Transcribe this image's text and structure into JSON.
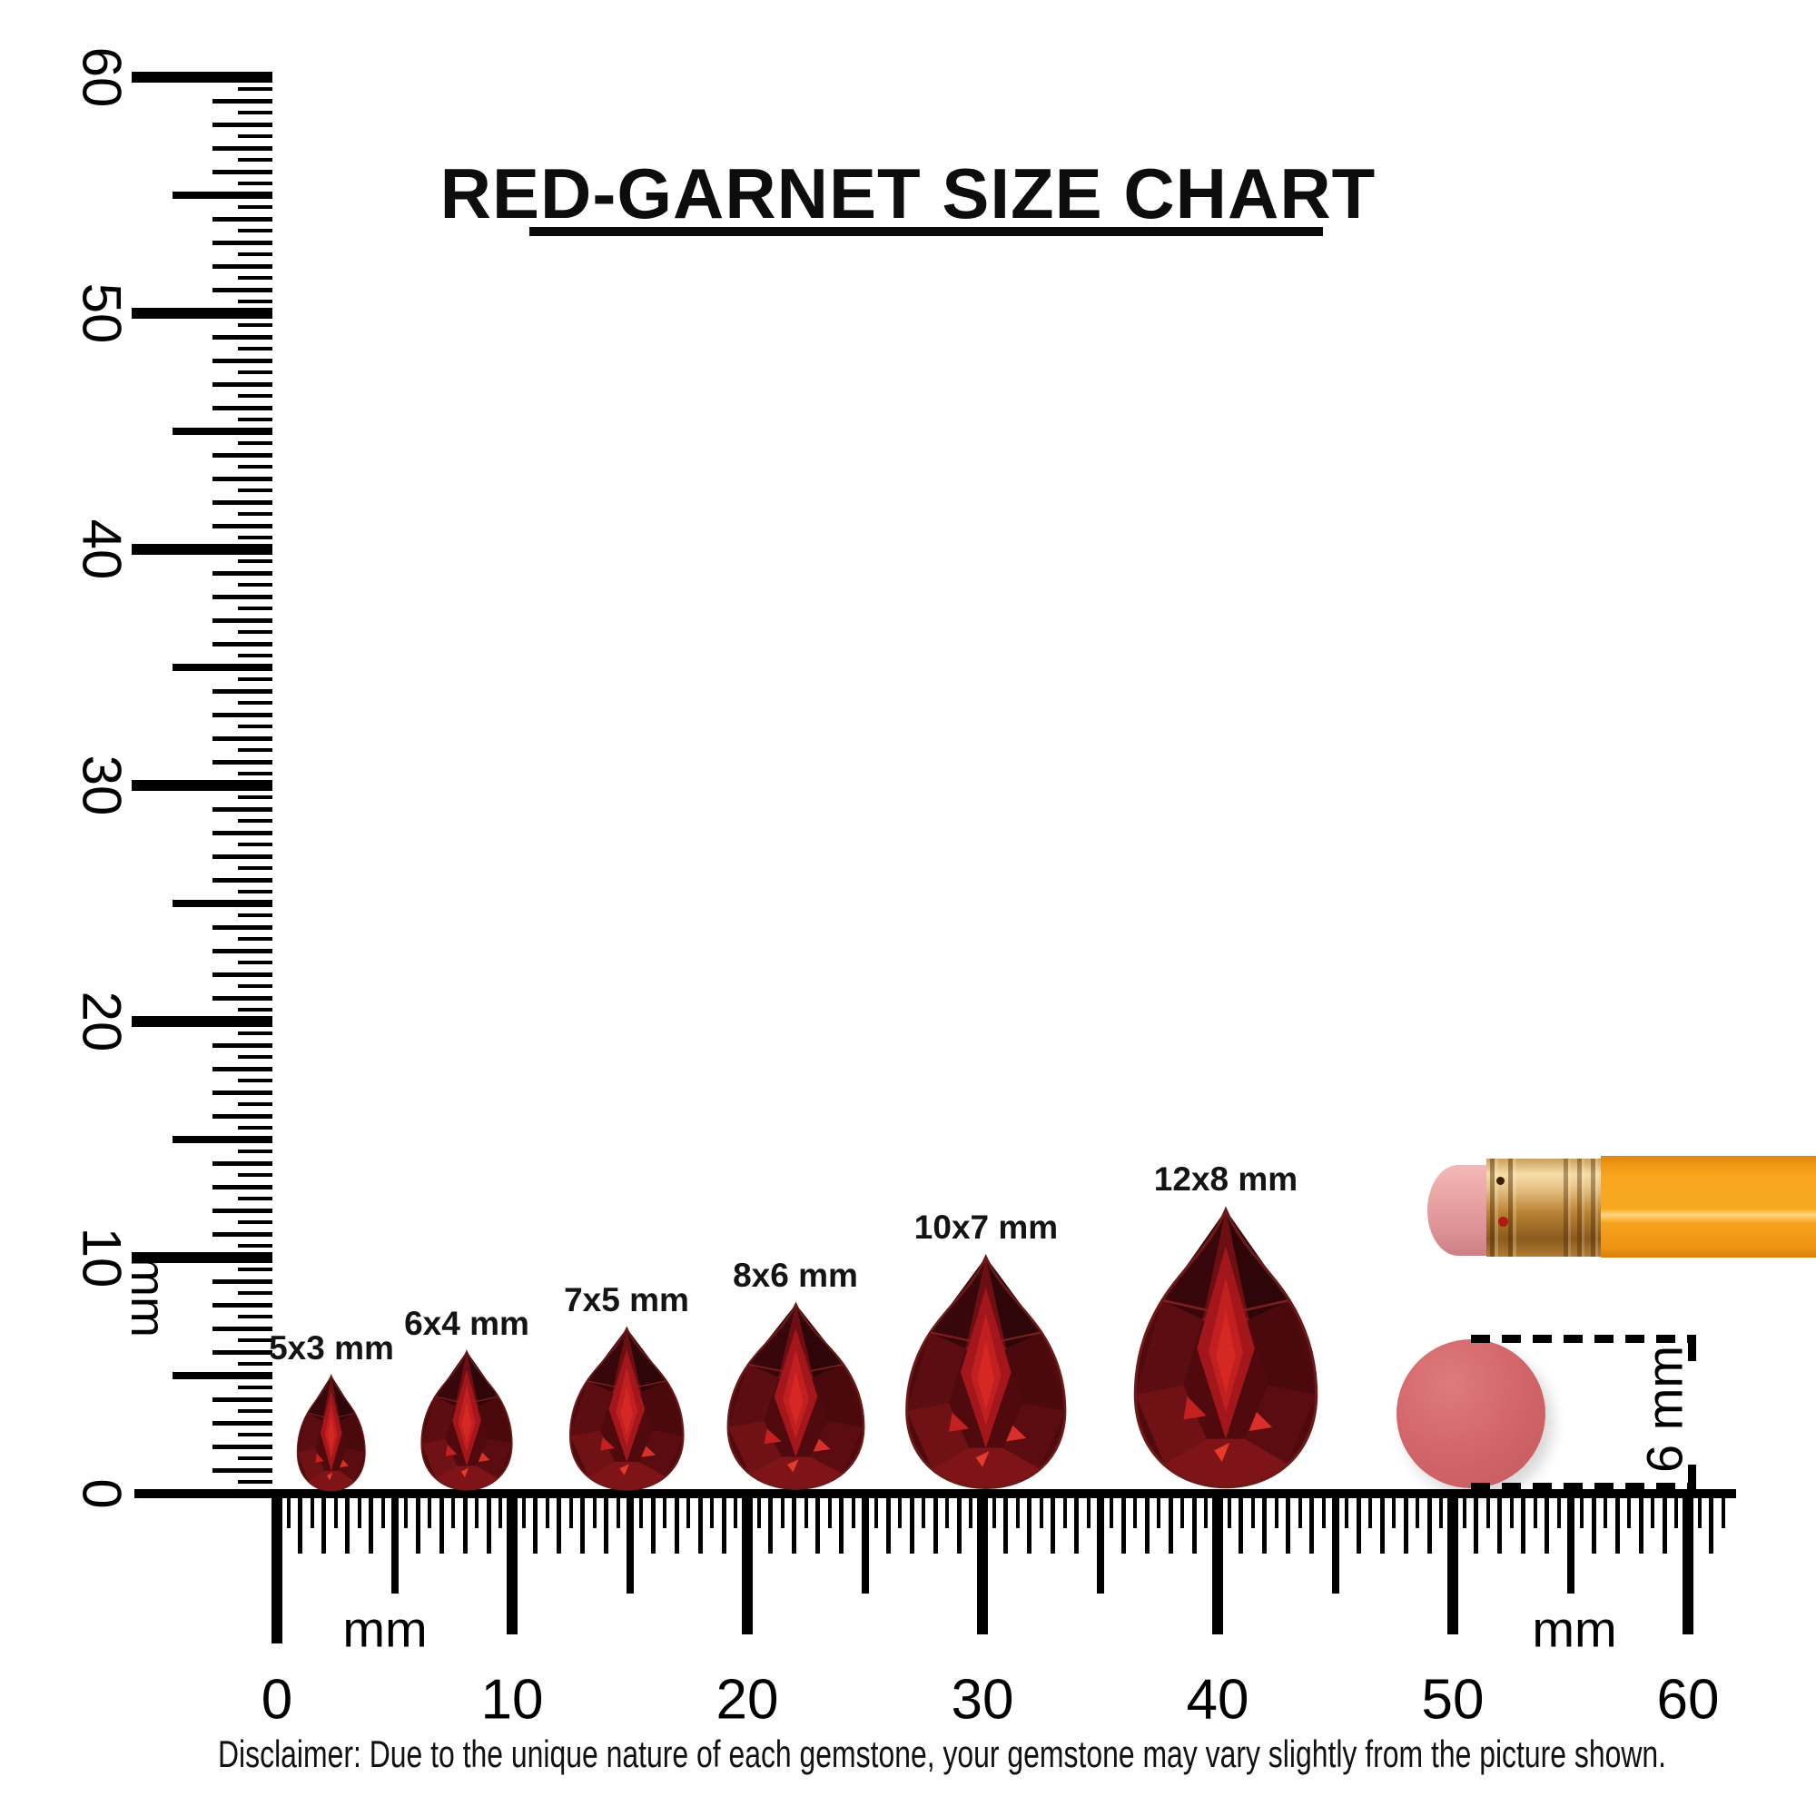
{
  "title": "RED-GARNET SIZE CHART",
  "rulers": {
    "vertical": {
      "unit": "mm",
      "tick_labels": [
        "60",
        "50",
        "40",
        "30",
        "20",
        "10",
        "0"
      ],
      "range_mm": [
        0,
        60
      ]
    },
    "horizontal": {
      "unit_left": "mm",
      "unit_right": "mm",
      "tick_labels": [
        "0",
        "10",
        "20",
        "30",
        "40",
        "50",
        "60"
      ],
      "range_mm": [
        0,
        60
      ]
    }
  },
  "gems": [
    {
      "label": "5x3 mm",
      "length_mm": 5,
      "width_mm": 3
    },
    {
      "label": "6x4 mm",
      "length_mm": 6,
      "width_mm": 4
    },
    {
      "label": "7x5 mm",
      "length_mm": 7,
      "width_mm": 5
    },
    {
      "label": "8x6 mm",
      "length_mm": 8,
      "width_mm": 6
    },
    {
      "label": "10x7 mm",
      "length_mm": 10,
      "width_mm": 7
    },
    {
      "label": "12x8 mm",
      "length_mm": 12,
      "width_mm": 8
    }
  ],
  "scale_reference": {
    "object": "pencil eraser end",
    "diameter_label": "6 mm"
  },
  "disclaimer": "Disclaimer: Due to the unique nature of each gemstone, your gemstone may vary slightly from the picture shown.",
  "colors": {
    "garnet_dark": "#4a090d",
    "garnet_mid": "#8c1115",
    "garnet_bright": "#c21f21",
    "pencil_orange": "#f7a41f",
    "ferrule_gold": "#c08840",
    "eraser_pink": "#cf6165",
    "ink": "#000000",
    "background": "#ffffff"
  }
}
